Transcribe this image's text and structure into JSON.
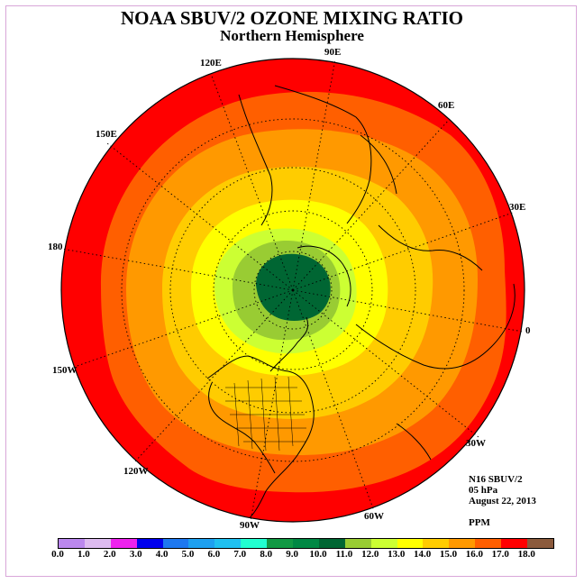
{
  "header": {
    "title": "NOAA SBUV/2 OZONE MIXING RATIO",
    "subtitle": "Northern Hemisphere"
  },
  "map": {
    "projection": "polar stereographic, north pole",
    "longitude_labels": [
      "90E",
      "60E",
      "30E",
      "0",
      "30W",
      "60W",
      "90W",
      "120W",
      "150W",
      "180",
      "150E",
      "120E"
    ],
    "field_bands_ppm": [
      {
        "range": "16.0-17.0",
        "color": "#ff0000",
        "region": "outer ring"
      },
      {
        "range": "15.0-16.0",
        "color": "#ff5f00"
      },
      {
        "range": "14.0-15.0",
        "color": "#ff9900"
      },
      {
        "range": "13.0-14.0",
        "color": "#ffcc00"
      },
      {
        "range": "12.0-13.0",
        "color": "#ffff00"
      },
      {
        "range": "11.0-12.0",
        "color": "#ccff33"
      },
      {
        "range": "10.0-11.0",
        "color": "#99cc33"
      },
      {
        "range": "8.0-10.0",
        "color": "#006633",
        "region": "polar center"
      }
    ]
  },
  "info": {
    "instrument": "N16 SBUV/2",
    "level": "05 hPa",
    "date": "August 22, 2013",
    "units": "PPM"
  },
  "colorbar": {
    "colors": [
      "#bb88ee",
      "#ddbbf0",
      "#ee22ee",
      "#0000ee",
      "#1e78f0",
      "#1ea0f0",
      "#20c0f0",
      "#22ffd0",
      "#119944",
      "#008844",
      "#006633",
      "#99cc33",
      "#ccff33",
      "#ffff00",
      "#ffcc00",
      "#ff9900",
      "#ff5f00",
      "#ff0000",
      "#8b5a3c"
    ],
    "tick_labels": [
      "0.0",
      "1.0",
      "2.0",
      "3.0",
      "4.0",
      "5.0",
      "6.0",
      "7.0",
      "8.0",
      "9.0",
      "10.0",
      "11.0",
      "12.0",
      "13.0",
      "14.0",
      "15.0",
      "16.0",
      "17.0",
      "18.0"
    ]
  }
}
